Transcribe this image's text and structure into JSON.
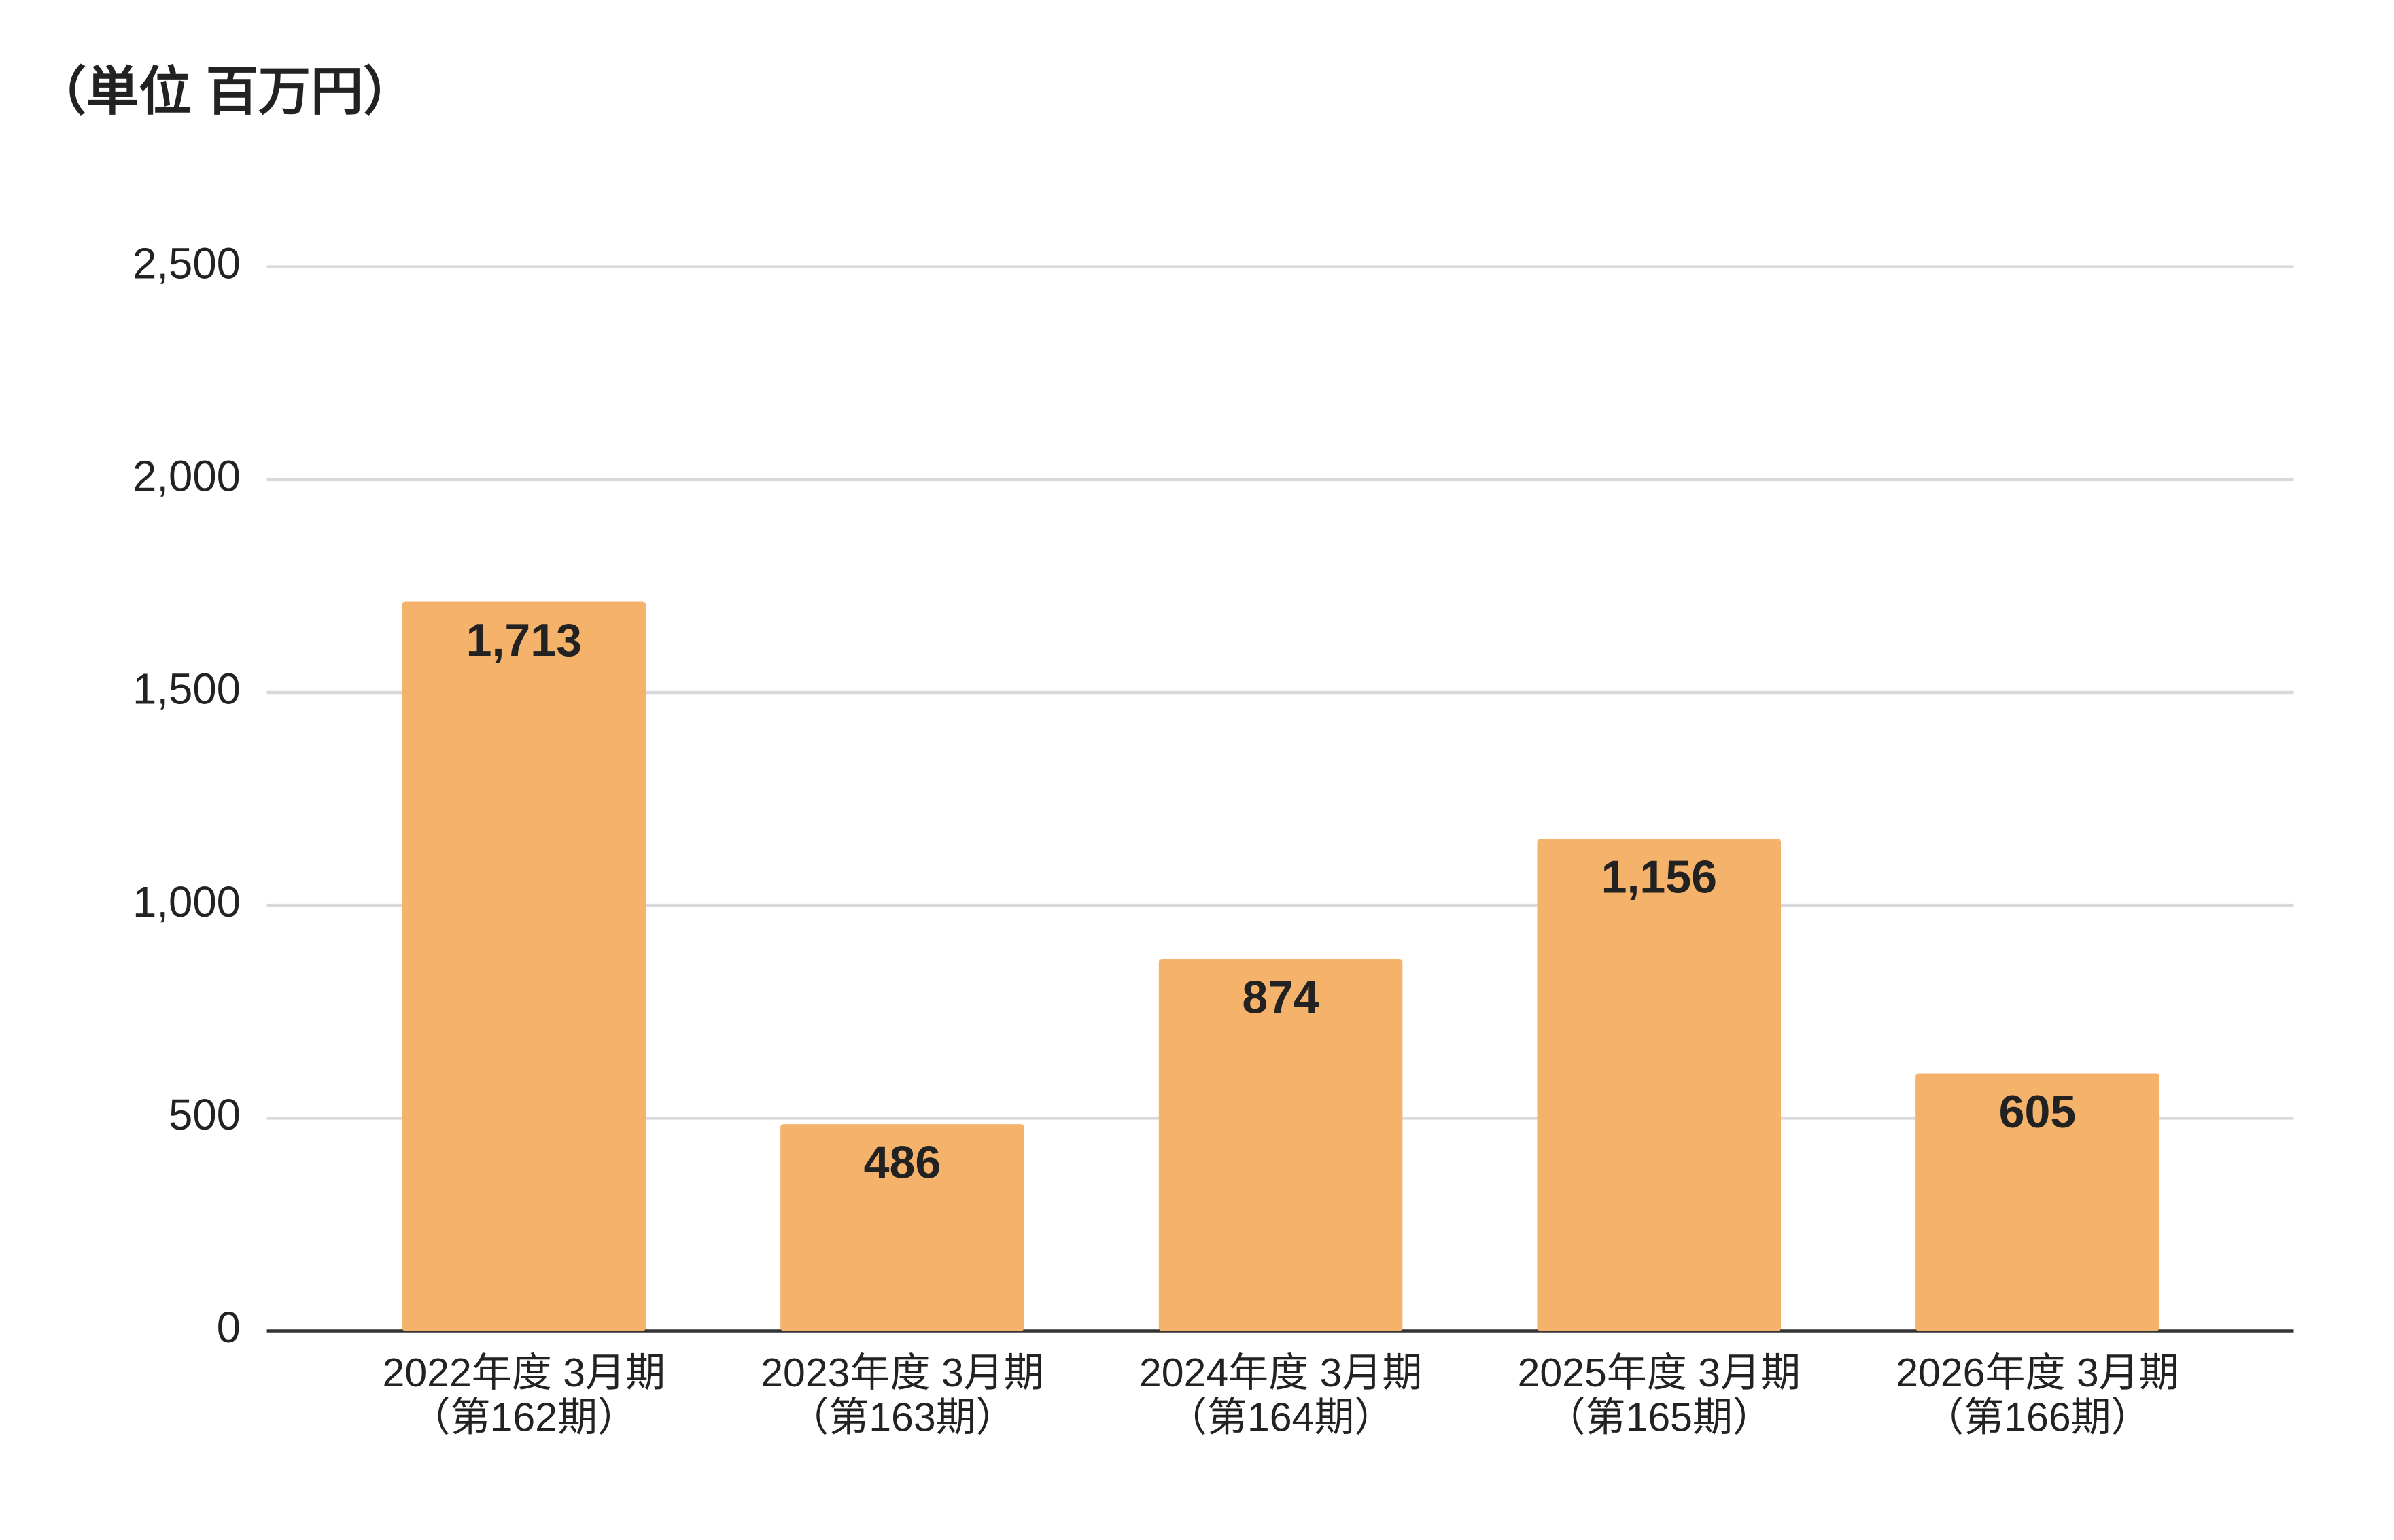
{
  "chart_data": {
    "type": "bar",
    "title": "（単位 百万円）",
    "categories": [
      [
        "2022年度 3月期",
        "（第162期）"
      ],
      [
        "2023年度 3月期",
        "（第163期）"
      ],
      [
        "2024年度 3月期",
        "（第164期）"
      ],
      [
        "2025年度 3月期",
        "（第165期）"
      ],
      [
        "2026年度 3月期",
        "（第166期）"
      ]
    ],
    "values": [
      1713,
      486,
      874,
      1156,
      605
    ],
    "value_labels": [
      "1,713",
      "486",
      "874",
      "1,156",
      "605"
    ],
    "color": "#f5b26b",
    "ylim": [
      0,
      2500
    ],
    "yticks": [
      0,
      500,
      {
        "value": 1000,
        "label": "1,000"
      },
      {
        "value": 1500,
        "label": "1,500"
      },
      {
        "value": 2000,
        "label": "2,000"
      },
      {
        "value": 2500,
        "label": "2,500"
      }
    ],
    "grid": true
  }
}
